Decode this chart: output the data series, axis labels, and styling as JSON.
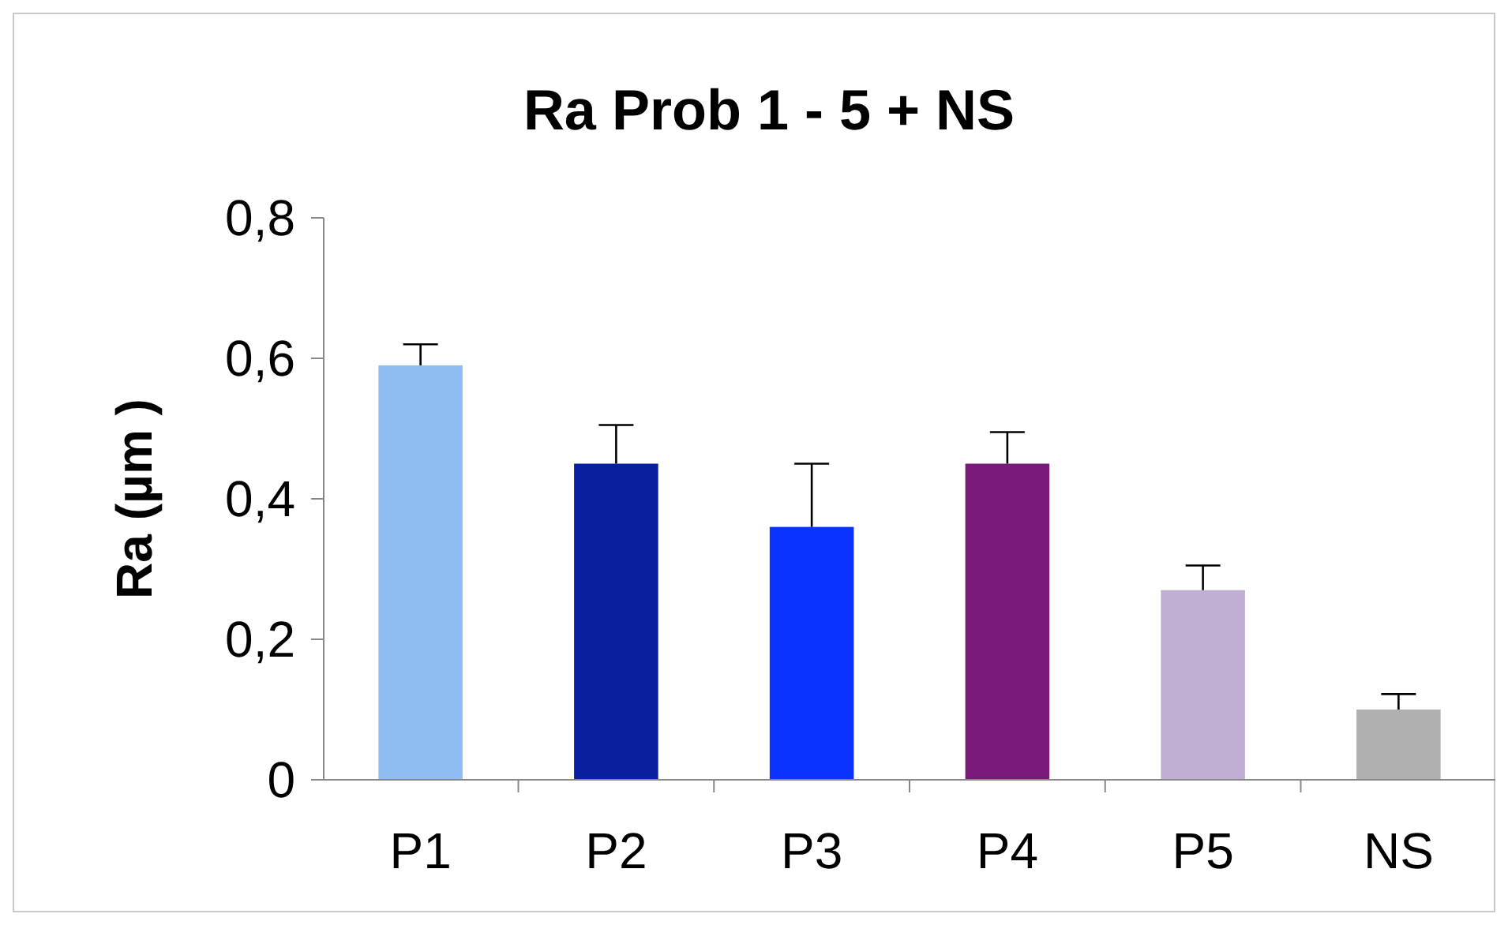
{
  "chart_data": {
    "type": "bar",
    "title": "Ra Prob 1 - 5 + NS",
    "ylabel": "Ra (µm )",
    "categories": [
      "P1",
      "P2",
      "P3",
      "P4",
      "P5",
      "NS"
    ],
    "values": [
      0.59,
      0.45,
      0.36,
      0.45,
      0.27,
      0.1
    ],
    "errors": [
      0.03,
      0.055,
      0.09,
      0.045,
      0.035,
      0.022
    ],
    "colors": [
      "#8fbcf2",
      "#0a1fa0",
      "#0a33ff",
      "#7a1a78",
      "#c0afd2",
      "#b0b0b0"
    ],
    "ylim": [
      0,
      0.8
    ],
    "yticks": [
      {
        "value": 0,
        "label": "0"
      },
      {
        "value": 0.2,
        "label": "0,2"
      },
      {
        "value": 0.4,
        "label": "0,4"
      },
      {
        "value": 0.6,
        "label": "0,6"
      },
      {
        "value": 0.8,
        "label": "0,8"
      }
    ],
    "grid": false
  }
}
